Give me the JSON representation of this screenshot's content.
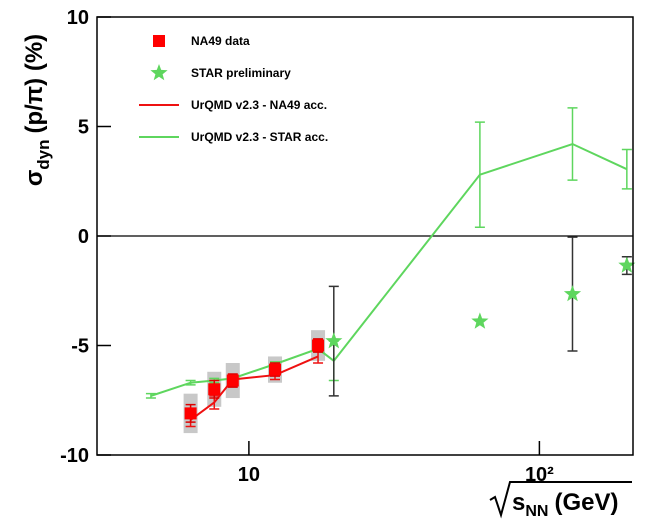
{
  "chart_data": {
    "type": "scatter",
    "y_label": {
      "symbol": "σ",
      "sub": "dyn",
      "rest": "(p/π) (%)"
    },
    "x_label": {
      "base": "s",
      "sub": "NN",
      "rest": "(GeV)"
    },
    "xscale": "log",
    "xlim": [
      3,
      210
    ],
    "xticks": [
      10,
      {
        "value": 100,
        "label": "10²"
      }
    ],
    "ylim": [
      -10,
      10
    ],
    "yticks": [
      -10,
      -5,
      0,
      5,
      10
    ],
    "hline": 0,
    "legend": "top-left",
    "series": [
      {
        "name": "NA49 data",
        "style": "square",
        "color": "#ff0000",
        "error_color": "#dd0000",
        "sys_color": "#c8c8c8",
        "x": [
          6.3,
          7.6,
          8.8,
          12.3,
          17.3
        ],
        "values": [
          -8.1,
          -7.0,
          -6.6,
          -6.1,
          -5.0
        ],
        "errors": [
          0.4,
          0.4,
          0.3,
          0.3,
          0.3
        ],
        "sys_errors": [
          0.9,
          0.8,
          0.8,
          0.6,
          0.7
        ]
      },
      {
        "name": "STAR preliminary",
        "style": "star",
        "color": "#5ed65e",
        "error_color": "#333333",
        "x": [
          19.6,
          62.4,
          130,
          200
        ],
        "values": [
          -4.8,
          -3.9,
          -2.65,
          -1.35
        ],
        "errors": [
          2.5,
          0,
          2.6,
          0.4
        ]
      },
      {
        "name": "UrQMD v2.3 - NA49 acc.",
        "style": "line",
        "color": "#ee1111",
        "error_color": "#ee1111",
        "x": [
          6.3,
          7.6,
          8.8,
          12.3,
          17.3
        ],
        "values": [
          -8.4,
          -7.6,
          -6.55,
          -6.35,
          -5.5
        ],
        "errors": [
          0.3,
          0.3,
          0.2,
          0.2,
          0.3
        ]
      },
      {
        "name": "UrQMD v2.3 - STAR acc.",
        "style": "line",
        "color": "#5ed65e",
        "error_color": "#5ed65e",
        "x": [
          4.6,
          6.3,
          7.6,
          8.8,
          12.3,
          17.3,
          19.6,
          62.4,
          130,
          200
        ],
        "values": [
          -7.3,
          -6.7,
          -6.6,
          -6.5,
          -5.85,
          -5.15,
          -5.7,
          2.8,
          4.2,
          3.05
        ],
        "errors": [
          0.1,
          0.1,
          0.1,
          0.1,
          0.1,
          0.1,
          0.9,
          2.4,
          1.65,
          0.9
        ]
      }
    ]
  }
}
